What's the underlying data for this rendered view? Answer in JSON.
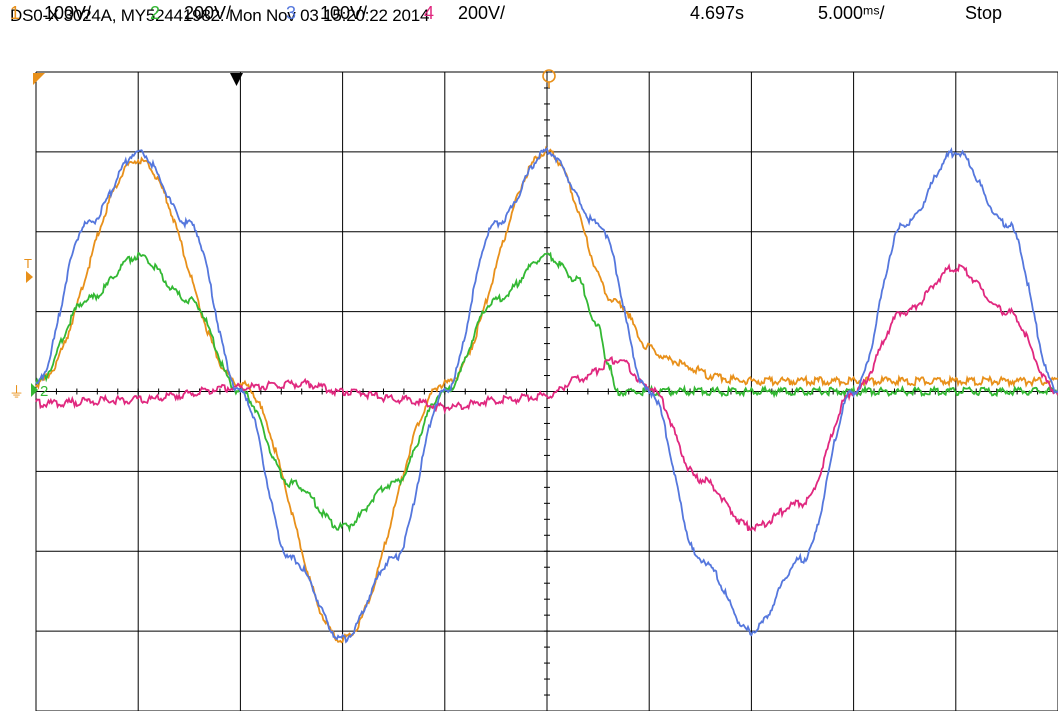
{
  "header": {
    "title": "DS0-X 3024A, MY52441982: Mon Nov 03 15:20:22 2014"
  },
  "status": {
    "channels": [
      {
        "number": "1",
        "scale": "100V/",
        "color": "#e8901a"
      },
      {
        "number": "2",
        "scale": "200V/",
        "color": "#33b833"
      },
      {
        "number": "3",
        "scale": "100V/",
        "color": "#5577dd"
      },
      {
        "number": "4",
        "scale": "200V/",
        "color": "#e0287f"
      }
    ],
    "delay": "4.697s",
    "timebase": "5.000ᵐˢ/",
    "run_state": "Stop"
  },
  "markers": {
    "trigger_level": "T",
    "ground_label": "2"
  },
  "colors": {
    "grid": "#000000",
    "ch1": "#e8901a",
    "ch2": "#33b833",
    "ch3": "#5577dd",
    "ch4": "#e0287f",
    "background": "#ffffff"
  },
  "chart_data": {
    "type": "line",
    "title": "",
    "xlabel": "",
    "ylabel": "",
    "x_divisions": 10,
    "y_divisions": 8,
    "xlim": [
      -25,
      25
    ],
    "ylim": [
      -4,
      4
    ],
    "x_unit": "ms",
    "y_unit": "div",
    "grid": true,
    "series": [
      {
        "name": "1",
        "color": "#e8901a",
        "x": [
          -25,
          -20,
          -15,
          -10,
          -5,
          0,
          3.5,
          5,
          6,
          7,
          8,
          9,
          10,
          12,
          15,
          18,
          20,
          22,
          25
        ],
        "y": [
          0.1,
          2.9,
          0.1,
          -3.1,
          0.1,
          3.0,
          1.1,
          0.55,
          0.4,
          0.3,
          0.2,
          0.15,
          0.13,
          0.13,
          0.13,
          0.13,
          0.13,
          0.13,
          0.13
        ]
      },
      {
        "name": "2",
        "color": "#33b833",
        "x": [
          -25,
          -22.5,
          -20,
          -17.5,
          -15,
          -12.5,
          -10,
          -7.5,
          -5,
          -2.5,
          0,
          1.5,
          2.5,
          3,
          3.4,
          5,
          10,
          15,
          20,
          25
        ],
        "y": [
          0.1,
          1.15,
          1.7,
          1.15,
          0.0,
          -1.15,
          -1.7,
          -1.15,
          0.0,
          1.15,
          1.7,
          1.4,
          0.8,
          0.35,
          0.0,
          0.0,
          0.0,
          0.0,
          0.0,
          0.0
        ]
      },
      {
        "name": "3",
        "color": "#5577dd",
        "x": [
          -25,
          -22.5,
          -20,
          -17.5,
          -15,
          -12.5,
          -10,
          -7.5,
          -5,
          -2.5,
          0,
          2.5,
          5,
          7.5,
          10,
          12.5,
          15,
          17.5,
          20,
          22.5,
          25
        ],
        "y": [
          0.1,
          2.1,
          3.0,
          2.1,
          0.0,
          -2.1,
          -3.1,
          -2.1,
          0.0,
          2.1,
          3.0,
          2.1,
          0.0,
          -2.1,
          -3.0,
          -2.1,
          0.0,
          2.1,
          3.0,
          2.1,
          0.0
        ]
      },
      {
        "name": "4",
        "color": "#e0287f",
        "x": [
          -25,
          -20,
          -15,
          -12,
          -10,
          -7,
          -5,
          -2,
          0,
          1.5,
          3.5,
          5,
          7.5,
          10,
          12.5,
          15,
          17.5,
          20,
          22.5,
          25
        ],
        "y": [
          -0.15,
          -0.1,
          0.05,
          0.1,
          0.0,
          -0.1,
          -0.2,
          -0.1,
          -0.05,
          0.15,
          0.4,
          0.05,
          -1.1,
          -1.7,
          -1.4,
          0.0,
          1.0,
          1.55,
          1.0,
          0.0
        ]
      }
    ]
  }
}
